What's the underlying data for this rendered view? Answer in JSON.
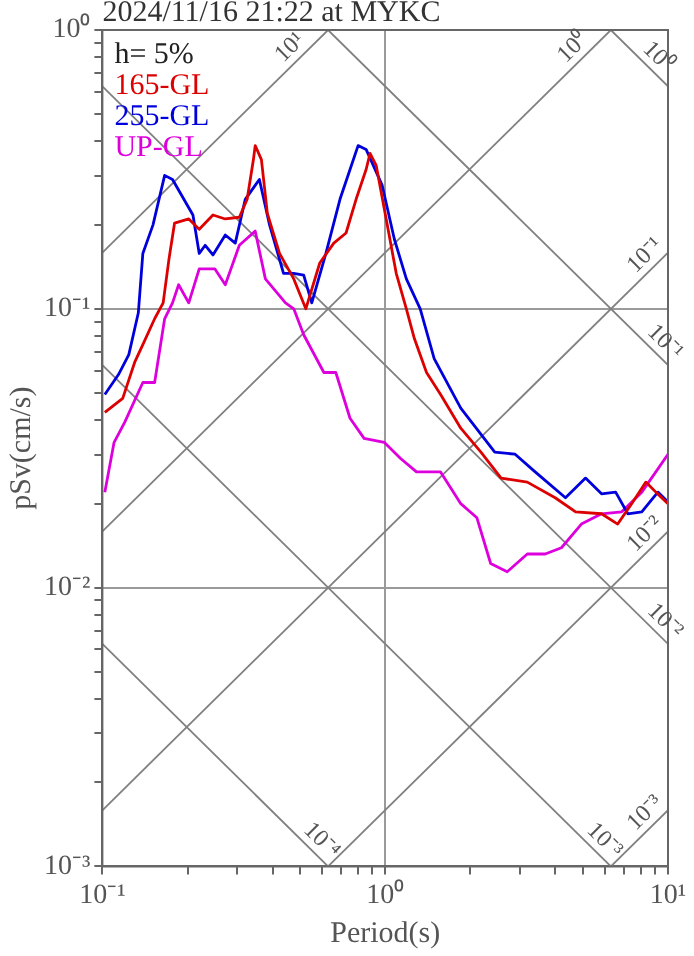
{
  "chart_data": {
    "type": "line",
    "title": "2024/11/16 21:22 at MYKC",
    "xlabel": "Period(s)",
    "ylabel": "pSv(cm/s)",
    "legend_title": "h= 5%",
    "legend": "top left",
    "log": "xy",
    "grid": true,
    "marker": "none",
    "line_style": "solid",
    "xlim": [
      0.1,
      10
    ],
    "ylim": [
      0.001,
      1
    ],
    "xticks": [
      {
        "value": 0.1,
        "label": "10⁻¹"
      },
      {
        "value": 0.2,
        "label": null
      },
      {
        "value": 0.3,
        "label": null
      },
      {
        "value": 0.4,
        "label": null
      },
      {
        "value": 0.5,
        "label": null
      },
      {
        "value": 0.6,
        "label": null
      },
      {
        "value": 0.7,
        "label": null
      },
      {
        "value": 0.8,
        "label": null
      },
      {
        "value": 0.9,
        "label": null
      },
      {
        "value": 1,
        "label": "10⁰"
      },
      {
        "value": 2,
        "label": null
      },
      {
        "value": 3,
        "label": null
      },
      {
        "value": 4,
        "label": null
      },
      {
        "value": 5,
        "label": null
      },
      {
        "value": 6,
        "label": null
      },
      {
        "value": 7,
        "label": null
      },
      {
        "value": 8,
        "label": null
      },
      {
        "value": 9,
        "label": null
      },
      {
        "value": 10,
        "label": "10¹"
      }
    ],
    "yticks": [
      {
        "value": 0.001,
        "label": "10⁻³"
      },
      {
        "value": 0.002,
        "label": null
      },
      {
        "value": 0.003,
        "label": null
      },
      {
        "value": 0.004,
        "label": null
      },
      {
        "value": 0.005,
        "label": null
      },
      {
        "value": 0.006,
        "label": null
      },
      {
        "value": 0.007,
        "label": null
      },
      {
        "value": 0.008,
        "label": null
      },
      {
        "value": 0.009,
        "label": null
      },
      {
        "value": 0.01,
        "label": "10⁻²"
      },
      {
        "value": 0.02,
        "label": null
      },
      {
        "value": 0.03,
        "label": null
      },
      {
        "value": 0.04,
        "label": null
      },
      {
        "value": 0.05,
        "label": null
      },
      {
        "value": 0.06,
        "label": null
      },
      {
        "value": 0.07,
        "label": null
      },
      {
        "value": 0.08,
        "label": null
      },
      {
        "value": 0.09,
        "label": null
      },
      {
        "value": 0.1,
        "label": "10⁻¹"
      },
      {
        "value": 0.2,
        "label": null
      },
      {
        "value": 0.3,
        "label": null
      },
      {
        "value": 0.4,
        "label": null
      },
      {
        "value": 0.5,
        "label": null
      },
      {
        "value": 0.6,
        "label": null
      },
      {
        "value": 0.7,
        "label": null
      },
      {
        "value": 0.8,
        "label": null
      },
      {
        "value": 0.9,
        "label": null
      },
      {
        "value": 1,
        "label": "10⁰"
      }
    ],
    "series": [
      {
        "name": "165-GL",
        "color": "#dd0000",
        "x": [
          0.102,
          0.118,
          0.13,
          0.139,
          0.153,
          0.164,
          0.172,
          0.18,
          0.202,
          0.22,
          0.246,
          0.272,
          0.305,
          0.325,
          0.342,
          0.347,
          0.365,
          0.383,
          0.423,
          0.475,
          0.524,
          0.587,
          0.658,
          0.727,
          0.789,
          0.856,
          0.884,
          0.929,
          1.008,
          1.094,
          1.188,
          1.268,
          1.4,
          1.57,
          1.85,
          2.18,
          2.57,
          3.18,
          3.99,
          4.71,
          5.82,
          6.64,
          7.44,
          8.35,
          9.06,
          10
        ],
        "values": [
          0.0425,
          0.0477,
          0.0642,
          0.0744,
          0.0921,
          0.105,
          0.151,
          0.203,
          0.21,
          0.193,
          0.217,
          0.21,
          0.213,
          0.247,
          0.343,
          0.385,
          0.343,
          0.22,
          0.158,
          0.128,
          0.1,
          0.146,
          0.172,
          0.187,
          0.247,
          0.316,
          0.361,
          0.327,
          0.21,
          0.134,
          0.1,
          0.0782,
          0.0591,
          0.0493,
          0.0373,
          0.0306,
          0.0247,
          0.0239,
          0.021,
          0.0187,
          0.0184,
          0.0169,
          0.02,
          0.0239,
          0.022,
          0.02
        ]
      },
      {
        "name": "255-GL",
        "color": "#0000dd",
        "x": [
          0.102,
          0.114,
          0.124,
          0.134,
          0.139,
          0.151,
          0.166,
          0.177,
          0.209,
          0.22,
          0.231,
          0.246,
          0.272,
          0.295,
          0.32,
          0.359,
          0.39,
          0.437,
          0.475,
          0.515,
          0.55,
          0.617,
          0.692,
          0.751,
          0.802,
          0.856,
          0.976,
          1.077,
          1.188,
          1.33,
          1.49,
          1.85,
          2.44,
          2.88,
          3.39,
          4.34,
          5.11,
          5.82,
          6.53,
          7.21,
          8.08,
          9.21,
          10
        ],
        "values": [
          0.0493,
          0.0581,
          0.0685,
          0.0968,
          0.158,
          0.2,
          0.301,
          0.291,
          0.217,
          0.158,
          0.169,
          0.156,
          0.184,
          0.172,
          0.247,
          0.291,
          0.2,
          0.134,
          0.134,
          0.132,
          0.105,
          0.158,
          0.247,
          0.316,
          0.385,
          0.373,
          0.277,
          0.178,
          0.128,
          0.1,
          0.0663,
          0.044,
          0.0306,
          0.0301,
          0.026,
          0.021,
          0.0247,
          0.0217,
          0.022,
          0.0184,
          0.0187,
          0.022,
          0.0203
        ]
      },
      {
        "name": "UP-GL",
        "color": "#dd00dd",
        "x": [
          0.102,
          0.11,
          0.12,
          0.139,
          0.153,
          0.166,
          0.177,
          0.186,
          0.202,
          0.22,
          0.25,
          0.272,
          0.305,
          0.347,
          0.377,
          0.444,
          0.475,
          0.515,
          0.607,
          0.669,
          0.751,
          0.842,
          0.992,
          1.131,
          1.29,
          1.57,
          1.85,
          2.11,
          2.36,
          2.7,
          3.18,
          3.68,
          4.2,
          4.94,
          5.82,
          6.86,
          8.08,
          10
        ],
        "values": [
          0.022,
          0.0332,
          0.0392,
          0.0544,
          0.0544,
          0.0921,
          0.105,
          0.122,
          0.105,
          0.139,
          0.139,
          0.122,
          0.169,
          0.19,
          0.128,
          0.105,
          0.1,
          0.0807,
          0.0591,
          0.0591,
          0.0405,
          0.0343,
          0.0332,
          0.0291,
          0.026,
          0.026,
          0.02,
          0.0178,
          0.0122,
          0.0114,
          0.0132,
          0.0132,
          0.0139,
          0.0169,
          0.0184,
          0.0187,
          0.022,
          0.0301
        ]
      },
      {
        "color": "#808080",
        "x": [
          0.1,
          0.628
        ],
        "values": [
          0.00628,
          0.001
        ]
      },
      {
        "color": "#808080",
        "x": [
          0.1,
          6.28
        ],
        "values": [
          0.0628,
          0.001
        ]
      },
      {
        "color": "#808080",
        "x": [
          0.1,
          10
        ],
        "values": [
          0.628,
          0.00628
        ]
      },
      {
        "color": "#808080",
        "x": [
          0.628,
          10
        ],
        "values": [
          1,
          0.0628
        ]
      },
      {
        "color": "#808080",
        "x": [
          6.28,
          10
        ],
        "values": [
          1,
          0.628
        ]
      },
      {
        "color": "#808080",
        "x": [
          6.28,
          10
        ],
        "values": [
          0.001,
          0.00159
        ]
      },
      {
        "color": "#808080",
        "x": [
          0.628,
          10
        ],
        "values": [
          0.001,
          0.0159
        ]
      },
      {
        "color": "#808080",
        "x": [
          0.1,
          10
        ],
        "values": [
          0.00159,
          0.159
        ]
      },
      {
        "color": "#808080",
        "x": [
          0.1,
          6.28
        ],
        "values": [
          0.0159,
          1
        ]
      },
      {
        "color": "#808080",
        "x": [
          0.1,
          0.628
        ],
        "values": [
          0.159,
          1
        ]
      }
    ],
    "annotations": [
      {
        "text": "10⁻⁴",
        "x": 0.55,
        "y": 0.00114
      },
      {
        "text": "10⁻³",
        "x": 5.5,
        "y": 0.00114
      },
      {
        "text": "10⁻²",
        "x": 9,
        "y": 0.00698
      },
      {
        "text": "10⁻¹",
        "x": 9,
        "y": 0.0698
      },
      {
        "text": "10⁰",
        "x": 8.5,
        "y": 0.739
      },
      {
        "text": "10⁻³",
        "x": 9,
        "y": 0.00143
      },
      {
        "text": "10⁻²",
        "x": 9,
        "y": 0.0143
      },
      {
        "text": "10⁻¹",
        "x": 9,
        "y": 0.143
      },
      {
        "text": "10⁰",
        "x": 5,
        "y": 0.796
      },
      {
        "text": "10¹",
        "x": 0.5,
        "y": 0.796
      }
    ]
  }
}
